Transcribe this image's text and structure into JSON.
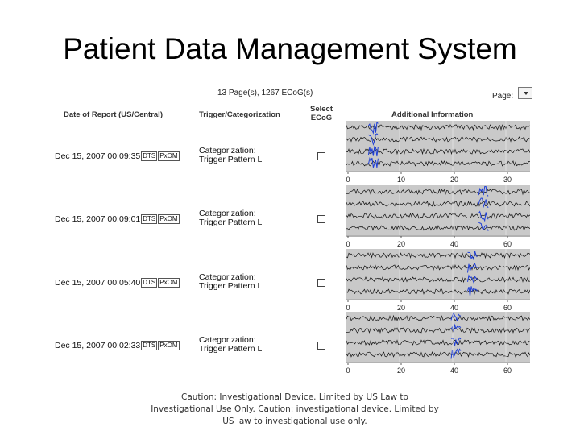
{
  "title": "Patient Data Management System",
  "pager": {
    "summary": "13 Page(s),  1267 ECoG(s)",
    "page_label": "Page:"
  },
  "table": {
    "headers": {
      "date": "Date of Report (US/Central)",
      "trigger": "Trigger/Categorization",
      "select": "Select ECoG",
      "info": "Additional Information"
    },
    "rows": [
      {
        "date": "Dec 15, 2007 00:09:35",
        "badge1": "DTS",
        "badge2": "PxOM",
        "trig_line1": "Categorization:",
        "trig_line2": "Trigger   Pattern L",
        "ticks": [
          "0",
          "10",
          "20",
          "30"
        ]
      },
      {
        "date": "Dec 15, 2007 00:09:01",
        "badge1": "DTS",
        "badge2": "PxOM",
        "trig_line1": "Categorization:",
        "trig_line2": "Trigger   Pattern L",
        "ticks": [
          "0",
          "20",
          "40",
          "60"
        ]
      },
      {
        "date": "Dec 15, 2007 00:05:40",
        "badge1": "DTS",
        "badge2": "PxOM",
        "trig_line1": "Categorization:",
        "trig_line2": "Trigger   Pattern L",
        "ticks": [
          "0",
          "20",
          "40",
          "60"
        ]
      },
      {
        "date": "Dec 15, 2007 00:02:33",
        "badge1": "DTS",
        "badge2": "PxOM",
        "trig_line1": "Categorization:",
        "trig_line2": "Trigger   Pattern L",
        "ticks": [
          "0",
          "20",
          "40",
          "60"
        ]
      }
    ]
  },
  "caution": "Caution: Investigational Device. Limited by US Law to Investigational Use Only. Caution: investigational device. Limited by US law to investigational use only."
}
